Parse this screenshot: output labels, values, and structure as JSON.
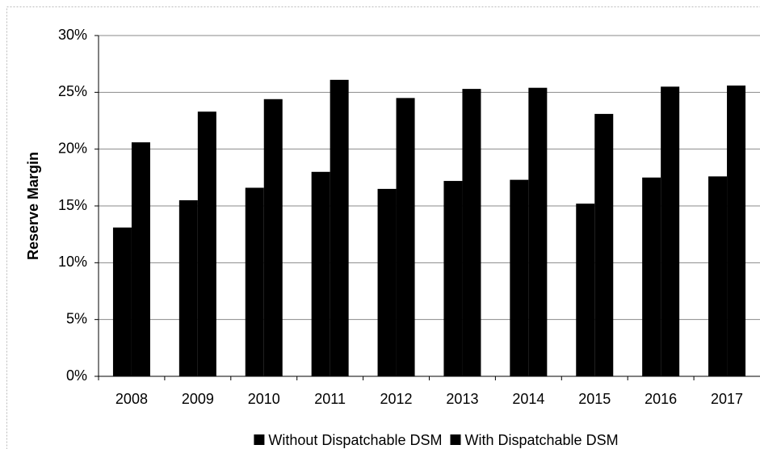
{
  "chart_data": {
    "type": "bar",
    "y_label": "Reserve Margin",
    "categories": [
      "2008",
      "2009",
      "2010",
      "2011",
      "2012",
      "2013",
      "2014",
      "2015",
      "2016",
      "2017"
    ],
    "series": [
      {
        "name": "Without Dispatchable DSM",
        "color": "#000000",
        "values": [
          13.1,
          15.5,
          16.6,
          18.0,
          16.5,
          17.2,
          17.3,
          15.2,
          17.5,
          17.6
        ]
      },
      {
        "name": "With Dispatchable DSM",
        "color": "#000000",
        "values": [
          20.6,
          23.3,
          24.4,
          26.1,
          24.5,
          25.3,
          25.4,
          23.1,
          25.5,
          25.6
        ]
      }
    ],
    "ylim": [
      0,
      30
    ],
    "yticks": [
      {
        "value": 0,
        "label": "0%"
      },
      {
        "value": 5,
        "label": "5%"
      },
      {
        "value": 10,
        "label": "10%"
      },
      {
        "value": 15,
        "label": "15%"
      },
      {
        "value": 20,
        "label": "20%"
      },
      {
        "value": 25,
        "label": "25%"
      },
      {
        "value": 30,
        "label": "30%"
      }
    ],
    "grid": true,
    "legend": "bottom"
  }
}
